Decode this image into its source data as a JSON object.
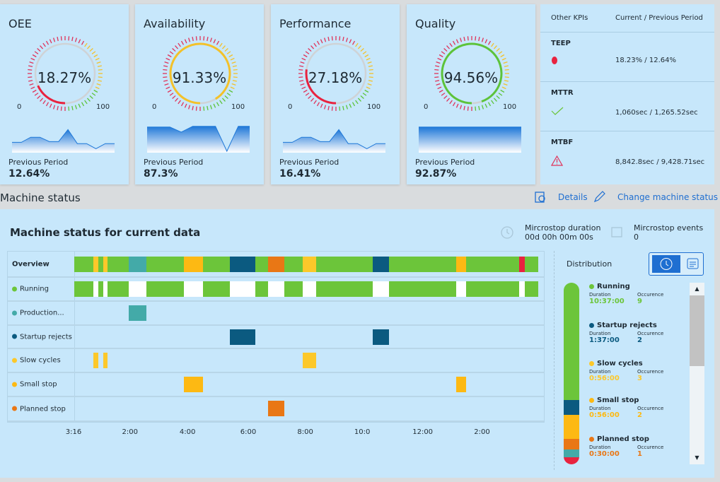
{
  "cards": [
    {
      "title": "OEE",
      "value": "18.27%",
      "pct": 18.27,
      "color": "#e8233f",
      "min": "0",
      "max": "100",
      "prev_label": "Previous Period",
      "prev_value": "12.64%",
      "trend": [
        0.35,
        0.35,
        0.55,
        0.55,
        0.38,
        0.38,
        0.85,
        0.3,
        0.3,
        0.1,
        0.3,
        0.3
      ]
    },
    {
      "title": "Availability",
      "value": "91.33%",
      "pct": 91.33,
      "color": "#f3c12a",
      "min": "0",
      "max": "100",
      "prev_label": "Previous Period",
      "prev_value": "87.3%",
      "trend": [
        0.95,
        0.95,
        0.95,
        0.75,
        0.98,
        0.98,
        0.98,
        0.0,
        0.98,
        0.98
      ]
    },
    {
      "title": "Performance",
      "value": "27.18%",
      "pct": 27.18,
      "color": "#e8233f",
      "min": "0",
      "max": "100",
      "prev_label": "Previous Period",
      "prev_value": "16.41%",
      "trend": [
        0.35,
        0.35,
        0.55,
        0.55,
        0.38,
        0.38,
        0.85,
        0.3,
        0.3,
        0.1,
        0.3,
        0.3
      ]
    },
    {
      "title": "Quality",
      "value": "94.56%",
      "pct": 94.56,
      "color": "#5dc33a",
      "min": "0",
      "max": "100",
      "prev_label": "Previous Period",
      "prev_value": "92.87%",
      "trend": [
        0.95,
        0.95,
        0.95,
        0.95,
        0.95,
        0.95
      ]
    }
  ],
  "kpis": {
    "header_name": "Other KPIs",
    "header_value": "Current / Previous Period",
    "rows": [
      {
        "name": "TEEP",
        "icon": "red-dot-icon",
        "value": "18.23% / 12.64%"
      },
      {
        "name": "MTTR",
        "icon": "check-icon",
        "value": "1,060sec / 1,265.52sec"
      },
      {
        "name": "MTBF",
        "icon": "warning-icon",
        "value": "8,842.8sec / 9,428.71sec"
      }
    ]
  },
  "section_title": "Machine status",
  "links": {
    "details": "Details",
    "change": "Change machine status"
  },
  "panel": {
    "title": "Machine status for current data",
    "micro_duration_label": "Mircrostop duration",
    "micro_duration_value": "00d 00h 00m 00s",
    "micro_events_label": "Mircrostop events",
    "micro_events_value": "0"
  },
  "timeline": {
    "end": 15.88,
    "ticks": [
      {
        "label": "3:16",
        "at": 0
      },
      {
        "label": "2:00",
        "at": 1.93
      },
      {
        "label": "4:00",
        "at": 3.9
      },
      {
        "label": "6:00",
        "at": 5.98
      },
      {
        "label": "8:00",
        "at": 7.93
      },
      {
        "label": "10:0",
        "at": 9.88
      },
      {
        "label": "12:00",
        "at": 11.95
      },
      {
        "label": "2:00",
        "at": 13.98
      }
    ],
    "overview_label": "Overview",
    "rows": [
      {
        "label": "Running",
        "color": "#6cc53a"
      },
      {
        "label": "Production...",
        "color": "#43aaa8",
        "blocks": [
          [
            1.86,
            2.48
          ]
        ]
      },
      {
        "label": "Startup rejects",
        "color": "#0b5a80",
        "blocks": [
          [
            5.33,
            6.19
          ],
          [
            10.22,
            10.77
          ]
        ]
      },
      {
        "label": "Slow cycles",
        "color": "#fcc82a",
        "blocks": [
          [
            0.65,
            0.82
          ],
          [
            0.99,
            1.14
          ],
          [
            7.83,
            8.29
          ]
        ]
      },
      {
        "label": "Small stop",
        "color": "#fdb913",
        "blocks": [
          [
            3.76,
            4.41
          ],
          [
            13.06,
            13.42
          ]
        ]
      },
      {
        "label": "Planned stop",
        "color": "#e97715",
        "blocks": [
          [
            6.63,
            7.2
          ]
        ]
      }
    ],
    "other_blocks": [
      {
        "color": "#e8233f",
        "range": [
          15.23,
          15.42
        ]
      }
    ]
  },
  "distribution": {
    "title": "Distribution",
    "duration_label": "Duration",
    "occurrence_label": "Occurence",
    "items": [
      {
        "name": "Running",
        "duration": "10:37:00",
        "occurrence": "9",
        "color": "#6cc53a"
      },
      {
        "name": "Startup rejects",
        "duration": "1:37:00",
        "occurrence": "2",
        "color": "#0b5a80"
      },
      {
        "name": "Slow cycles",
        "duration": "0:56:00",
        "occurrence": "3",
        "color": "#fcc82a"
      },
      {
        "name": "Small stop",
        "duration": "0:56:00",
        "occurrence": "2",
        "color": "#fdb913"
      },
      {
        "name": "Planned stop",
        "duration": "0:30:00",
        "occurrence": "1",
        "color": "#e97715"
      }
    ],
    "bar": [
      {
        "color": "#6cc53a",
        "share": 0.645
      },
      {
        "color": "#0b5a80",
        "share": 0.082
      },
      {
        "color": "#fdb913",
        "share": 0.132
      },
      {
        "color": "#e97715",
        "share": 0.058
      },
      {
        "color": "#43aaa8",
        "share": 0.043
      },
      {
        "color": "#e8233f",
        "share": 0.04
      }
    ]
  }
}
